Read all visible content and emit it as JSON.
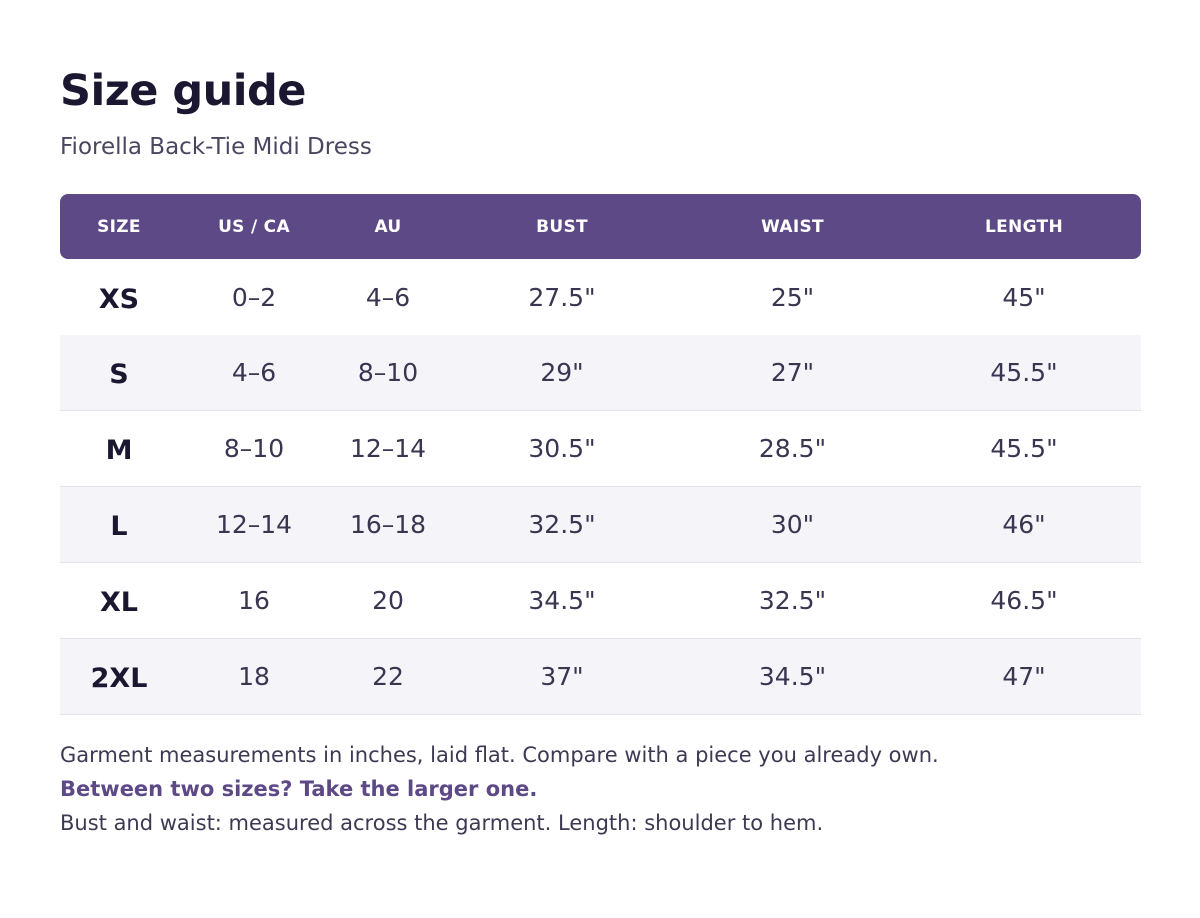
{
  "header": {
    "title": "Size guide",
    "subtitle": "Fiorella Back-Tie Midi Dress"
  },
  "table": {
    "columns": [
      "SIZE",
      "US / CA",
      "AU",
      "BUST",
      "WAIST",
      "LENGTH"
    ],
    "rows": [
      [
        "XS",
        "0–2",
        "4–6",
        "27.5\"",
        "25\"",
        "45\""
      ],
      [
        "S",
        "4–6",
        "8–10",
        "29\"",
        "27\"",
        "45.5\""
      ],
      [
        "M",
        "8–10",
        "12–14",
        "30.5\"",
        "28.5\"",
        "45.5\""
      ],
      [
        "L",
        "12–14",
        "16–18",
        "32.5\"",
        "30\"",
        "46\""
      ],
      [
        "XL",
        "16",
        "20",
        "34.5\"",
        "32.5\"",
        "46.5\""
      ],
      [
        "2XL",
        "18",
        "22",
        "37\"",
        "34.5\"",
        "47\""
      ]
    ]
  },
  "notes": {
    "line1": "Garment measurements in inches, laid flat. Compare with a piece you already own.",
    "highlight": "Between two sizes? Take the larger one.",
    "line3": "Bust and waist: measured across the garment.  Length: shoulder to hem."
  },
  "colors": {
    "accent": "#5e4987",
    "row_alt": "#f5f4f9"
  }
}
